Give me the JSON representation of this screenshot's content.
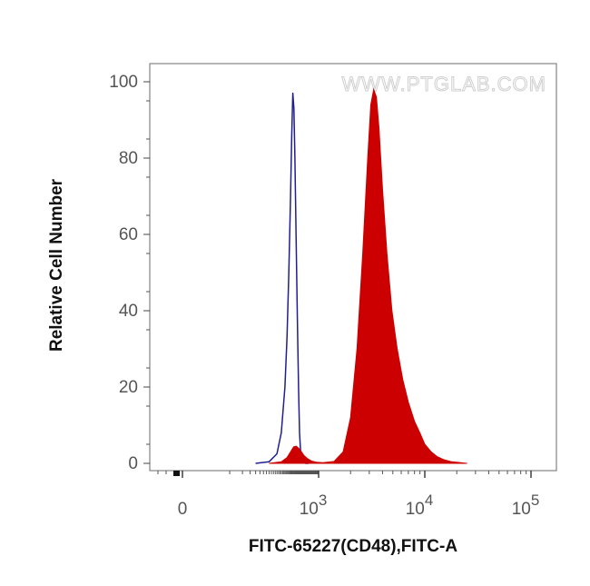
{
  "chart_data": {
    "type": "area",
    "xlabel": "FITC-65227(CD48),FITC-A",
    "ylabel": "Relative Cell Number",
    "watermark": "WWW.PTGLAB.COM",
    "x_scale": "biexponential",
    "ylim": [
      0,
      100
    ],
    "y_ticks": [
      {
        "v": 0,
        "label": "0"
      },
      {
        "v": 20,
        "label": "20"
      },
      {
        "v": 40,
        "label": "40"
      },
      {
        "v": 60,
        "label": "60"
      },
      {
        "v": 80,
        "label": "80"
      },
      {
        "v": 100,
        "label": "100"
      }
    ],
    "x_ticks": [
      {
        "v": 0,
        "base": "0",
        "exp": ""
      },
      {
        "v": 1000,
        "base": "10",
        "exp": "3"
      },
      {
        "v": 10000,
        "base": "10",
        "exp": "4"
      },
      {
        "v": 100000,
        "base": "10",
        "exp": "5"
      }
    ],
    "grid": false,
    "series": [
      {
        "color": "#1f1f8f",
        "style": "outline",
        "x": [
          40,
          80,
          120,
          150,
          180,
          200,
          220,
          240,
          255,
          270,
          285,
          300,
          320,
          340,
          360,
          380,
          400,
          440,
          480,
          520,
          600
        ],
        "y": [
          0,
          0.4,
          2.5,
          8,
          20,
          33,
          50,
          70,
          86,
          97,
          93,
          80,
          58,
          38,
          20,
          8,
          3,
          0.8,
          0.3,
          0,
          0
        ]
      },
      {
        "color": "#cc0000",
        "style": "filled",
        "x": [
          80,
          150,
          200,
          240,
          280,
          320,
          360,
          420,
          480,
          560,
          700,
          900,
          1100,
          1400,
          1700,
          2000,
          2300,
          2600,
          2900,
          3100,
          3300,
          3500,
          3700,
          4000,
          4400,
          4900,
          5500,
          6200,
          7000,
          8000,
          9000,
          10000,
          11500,
          13000,
          15000,
          18000,
          25000
        ],
        "y": [
          0,
          0.4,
          1.5,
          3,
          4.3,
          4.5,
          4,
          3,
          2,
          1.3,
          0.6,
          0.3,
          0.2,
          0.5,
          3,
          12,
          30,
          55,
          80,
          94,
          98,
          96,
          88,
          72,
          55,
          40,
          30,
          22,
          16,
          11,
          8,
          5,
          3,
          1.8,
          1,
          0.4,
          0
        ]
      }
    ]
  }
}
